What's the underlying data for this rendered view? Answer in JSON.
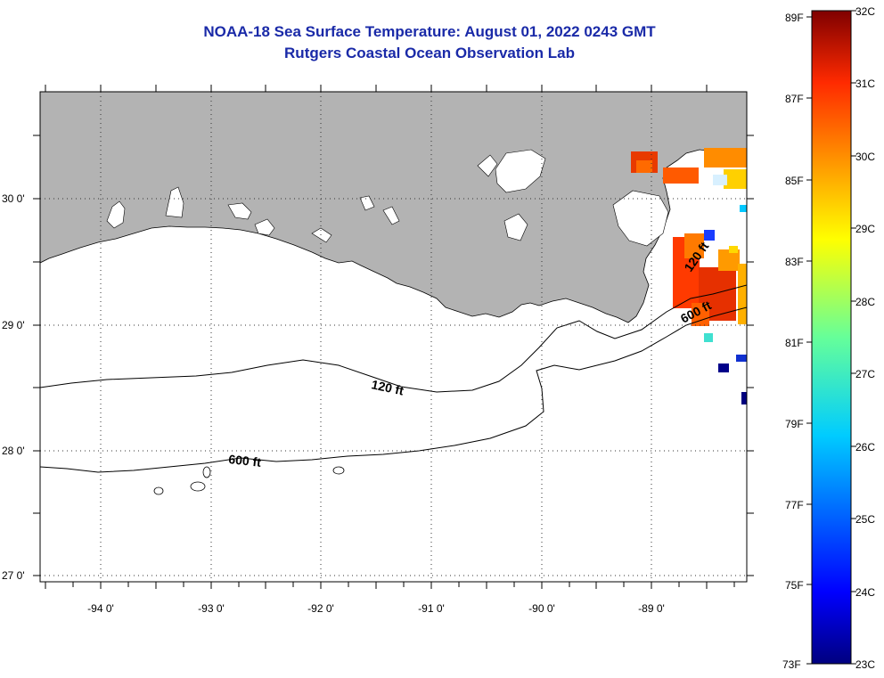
{
  "header": {
    "title": "NOAA-18 Sea Surface Temperature:  August 01, 2022 0243 GMT",
    "subtitle": "Rutgers Coastal Ocean Observation Lab"
  },
  "map": {
    "lon_range": [
      -94.55,
      -88.1
    ],
    "lat_range": [
      26.95,
      30.85
    ],
    "lon_ticks": [
      "-94 0'",
      "-93 0'",
      "-92 0'",
      "-91 0'",
      "-90 0'",
      "-89 0'"
    ],
    "lat_ticks": [
      "30 0'",
      "29 0'",
      "28 0'",
      "27 0'"
    ],
    "land_color": "#b3b3b3",
    "grid": "dotted",
    "contours": [
      {
        "label": "120 ft"
      },
      {
        "label": "600 ft"
      },
      {
        "label": "120 ft"
      },
      {
        "label": "600 ft"
      }
    ]
  },
  "colorbar": {
    "fahrenheit_labels": [
      "89F",
      "87F",
      "85F",
      "83F",
      "81F",
      "79F",
      "77F",
      "75F",
      "73F"
    ],
    "celsius_labels": [
      "32C",
      "31C",
      "30C",
      "29C",
      "28C",
      "27C",
      "26C",
      "25C",
      "24C",
      "23C"
    ],
    "range_c": [
      23,
      32
    ],
    "colormap": "jet"
  }
}
